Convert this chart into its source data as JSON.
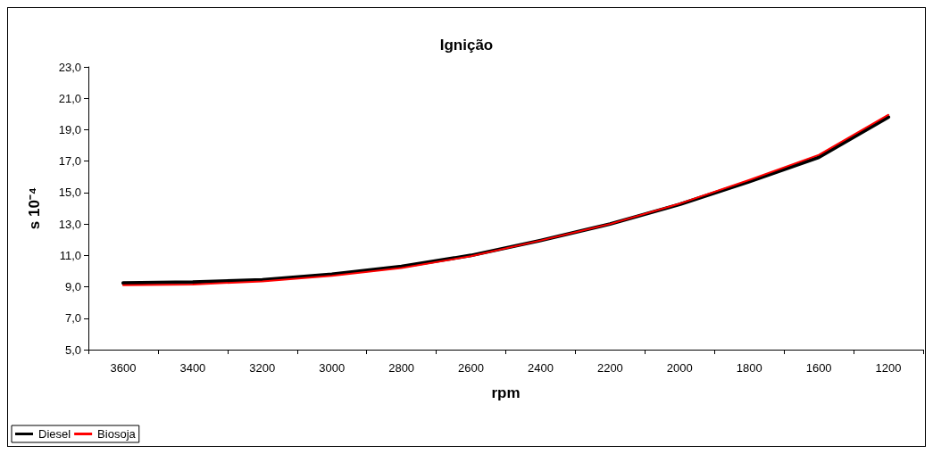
{
  "chart_data": {
    "type": "line",
    "title": "Ignição",
    "xlabel": "rpm",
    "ylabel": "s 10⁻⁴",
    "categories": [
      "3600",
      "3400",
      "3200",
      "3000",
      "2800",
      "2600",
      "2400",
      "2200",
      "2000",
      "1800",
      "1600",
      "1200"
    ],
    "series": [
      {
        "name": "Diesel",
        "color": "#000000",
        "values": [
          9.25,
          9.3,
          9.45,
          9.8,
          10.3,
          11.0,
          11.95,
          13.0,
          14.25,
          15.7,
          17.25,
          19.8
        ]
      },
      {
        "name": "Biosoja",
        "color": "#ff0000",
        "values": [
          9.1,
          9.15,
          9.35,
          9.7,
          10.2,
          10.95,
          11.95,
          13.0,
          14.3,
          15.8,
          17.4,
          19.95
        ]
      }
    ],
    "ylim": [
      5,
      23
    ],
    "yticks": [
      {
        "value": 5,
        "label": "5,0"
      },
      {
        "value": 7,
        "label": "7,0"
      },
      {
        "value": 9,
        "label": "9,0"
      },
      {
        "value": 11,
        "label": "11,0"
      },
      {
        "value": 13,
        "label": "13,0"
      },
      {
        "value": 15,
        "label": "15,0"
      },
      {
        "value": 17,
        "label": "17,0"
      },
      {
        "value": 19,
        "label": "19,0"
      },
      {
        "value": 21,
        "label": "21,0"
      },
      {
        "value": 23,
        "label": "23,0"
      }
    ],
    "grid": false,
    "legend": "bottom left",
    "marker": "none",
    "line_style": "solid"
  }
}
